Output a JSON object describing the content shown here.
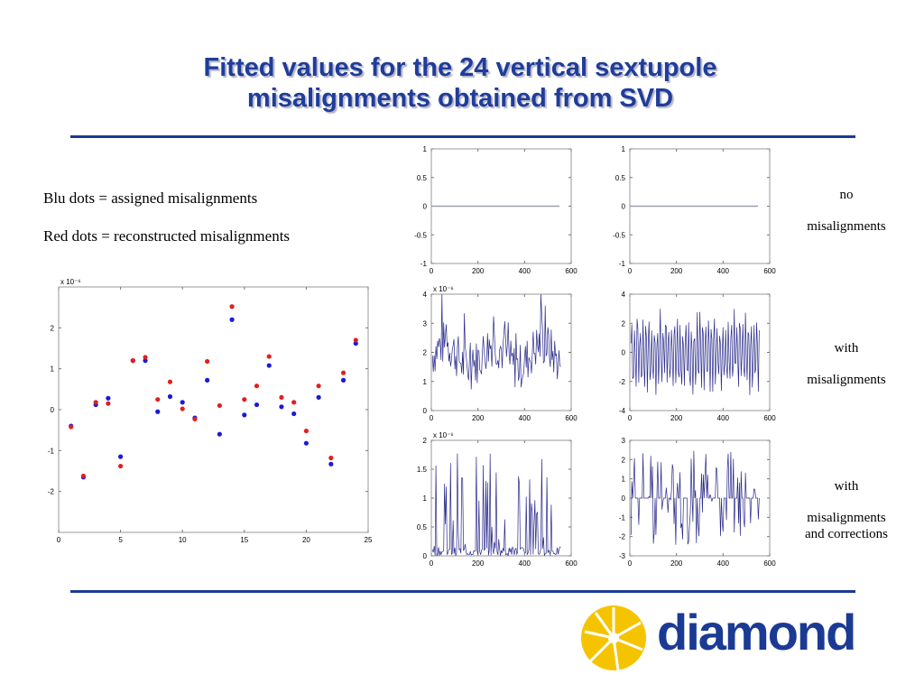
{
  "title_line1": "Fitted values for the 24 vertical sextupole",
  "title_line2": "misalignments obtained from SVD",
  "legend": {
    "blue": "Blu dots = assigned misalignments",
    "red": "Red dots = reconstructed misalignments"
  },
  "row_labels": [
    {
      "line1": "no",
      "line2": "misalignments",
      "line3": ""
    },
    {
      "line1": "with",
      "line2": "misalignments",
      "line3": ""
    },
    {
      "line1": "with",
      "line2": "misalignments",
      "line3": "and corrections"
    }
  ],
  "logo": {
    "text": "diamond",
    "sun_color": "#f5c400",
    "text_color": "#1b3a94"
  },
  "colors": {
    "title": "#1f3d99",
    "rule": "#1b3a94",
    "blue_dots": "#1a1ad6",
    "red_dots": "#e02020",
    "trace": "#2a2a8a"
  },
  "chart_data": [
    {
      "type": "scatter",
      "multiplier": "x 10⁻⁶",
      "xlim": [
        0,
        25
      ],
      "ylim": [
        -3,
        3
      ],
      "xticks": [
        "0",
        "5",
        "10",
        "15",
        "20",
        "25"
      ],
      "yticks": [
        "-2",
        "-1",
        "0",
        "1",
        "2"
      ],
      "series": [
        {
          "color": "#1a1ad6",
          "x": [
            1,
            2,
            3,
            4,
            5,
            6,
            7,
            8,
            9,
            10,
            11,
            12,
            13,
            14,
            15,
            16,
            17,
            18,
            19,
            20,
            21,
            22,
            23,
            24
          ],
          "y": [
            -0.4,
            -1.65,
            0.12,
            0.28,
            -1.15,
            1.2,
            1.2,
            -0.05,
            0.32,
            0.18,
            -0.2,
            0.72,
            -0.6,
            2.2,
            -0.13,
            0.12,
            1.08,
            0.07,
            -0.1,
            -0.82,
            0.3,
            -1.33,
            0.72,
            1.62
          ]
        },
        {
          "color": "#e02020",
          "x": [
            1,
            2,
            3,
            4,
            5,
            6,
            7,
            8,
            9,
            10,
            11,
            12,
            13,
            14,
            15,
            16,
            17,
            18,
            19,
            20,
            21,
            22,
            23,
            24
          ],
          "y": [
            -0.42,
            -1.62,
            0.18,
            0.15,
            -1.38,
            1.2,
            1.28,
            0.25,
            0.68,
            0.02,
            -0.23,
            1.18,
            0.1,
            2.52,
            0.25,
            0.58,
            1.3,
            0.3,
            0.18,
            -0.52,
            0.58,
            -1.18,
            0.9,
            1.7
          ]
        }
      ]
    },
    {
      "type": "line",
      "panel": "no-misalignments-1",
      "xlim": [
        0,
        600
      ],
      "ylim": [
        -1,
        1
      ],
      "xticks": [
        "0",
        "200",
        "400",
        "600"
      ],
      "yticks": [
        "-1",
        "-0.5",
        "0",
        "0.5",
        "1"
      ],
      "multiplier": "",
      "flat": 0
    },
    {
      "type": "line",
      "panel": "no-misalignments-2",
      "xlim": [
        0,
        600
      ],
      "ylim": [
        -1,
        1
      ],
      "xticks": [
        "0",
        "200",
        "400",
        "600"
      ],
      "yticks": [
        "-1",
        "-0.5",
        "0",
        "0.5",
        "1"
      ],
      "multiplier": "",
      "flat": 0
    },
    {
      "type": "line",
      "panel": "misalignments-1",
      "xlim": [
        0,
        600
      ],
      "ylim": [
        0,
        4
      ],
      "xticks": [
        "0",
        "200",
        "400",
        "600"
      ],
      "yticks": [
        "0",
        "1",
        "2",
        "3",
        "4"
      ],
      "multiplier": "x 10⁻⁶"
    },
    {
      "type": "line",
      "panel": "misalignments-2",
      "xlim": [
        0,
        600
      ],
      "ylim": [
        -4,
        4
      ],
      "xticks": [
        "0",
        "200",
        "400",
        "600"
      ],
      "yticks": [
        "-4",
        "-2",
        "0",
        "2",
        "4"
      ],
      "multiplier": ""
    },
    {
      "type": "line",
      "panel": "corrections-1",
      "xlim": [
        0,
        600
      ],
      "ylim": [
        0,
        2
      ],
      "xticks": [
        "0",
        "200",
        "400",
        "600"
      ],
      "yticks": [
        "0",
        "0.5",
        "1",
        "1.5",
        "2"
      ],
      "multiplier": "x 10⁻⁶"
    },
    {
      "type": "line",
      "panel": "corrections-2",
      "xlim": [
        0,
        600
      ],
      "ylim": [
        -3,
        3
      ],
      "xticks": [
        "0",
        "200",
        "400",
        "600"
      ],
      "yticks": [
        "-3",
        "-2",
        "-1",
        "0",
        "1",
        "2",
        "3"
      ],
      "multiplier": ""
    }
  ]
}
